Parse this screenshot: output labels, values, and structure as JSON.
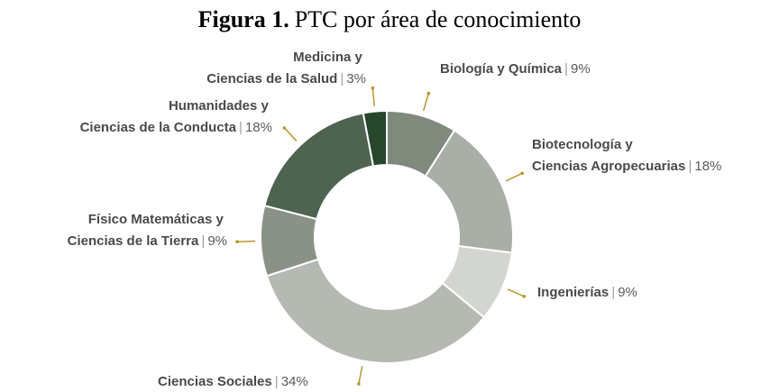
{
  "chart_data": {
    "type": "donut",
    "figure_label": "Figura 1.",
    "title": "PTC por área de conocimiento",
    "categories": [
      "Biología y Química",
      "Biotecnología y Ciencias Agropecuarias",
      "Ingenierías",
      "Ciencias Sociales",
      "Físico Matemáticas y Ciencias de la Tierra",
      "Humanidades y Ciencias de la Conducta",
      "Medicina y Ciencias de la Salud"
    ],
    "values": [
      9,
      18,
      9,
      34,
      9,
      18,
      3
    ],
    "value_labels": [
      "9%",
      "18%",
      "9%",
      "34%",
      "9%",
      "18%",
      "3%"
    ],
    "colors": [
      "#7f8a7d",
      "#a9aea6",
      "#d3d5d1",
      "#b5b9b1",
      "#8a9287",
      "#4e6350",
      "#27472c"
    ]
  }
}
